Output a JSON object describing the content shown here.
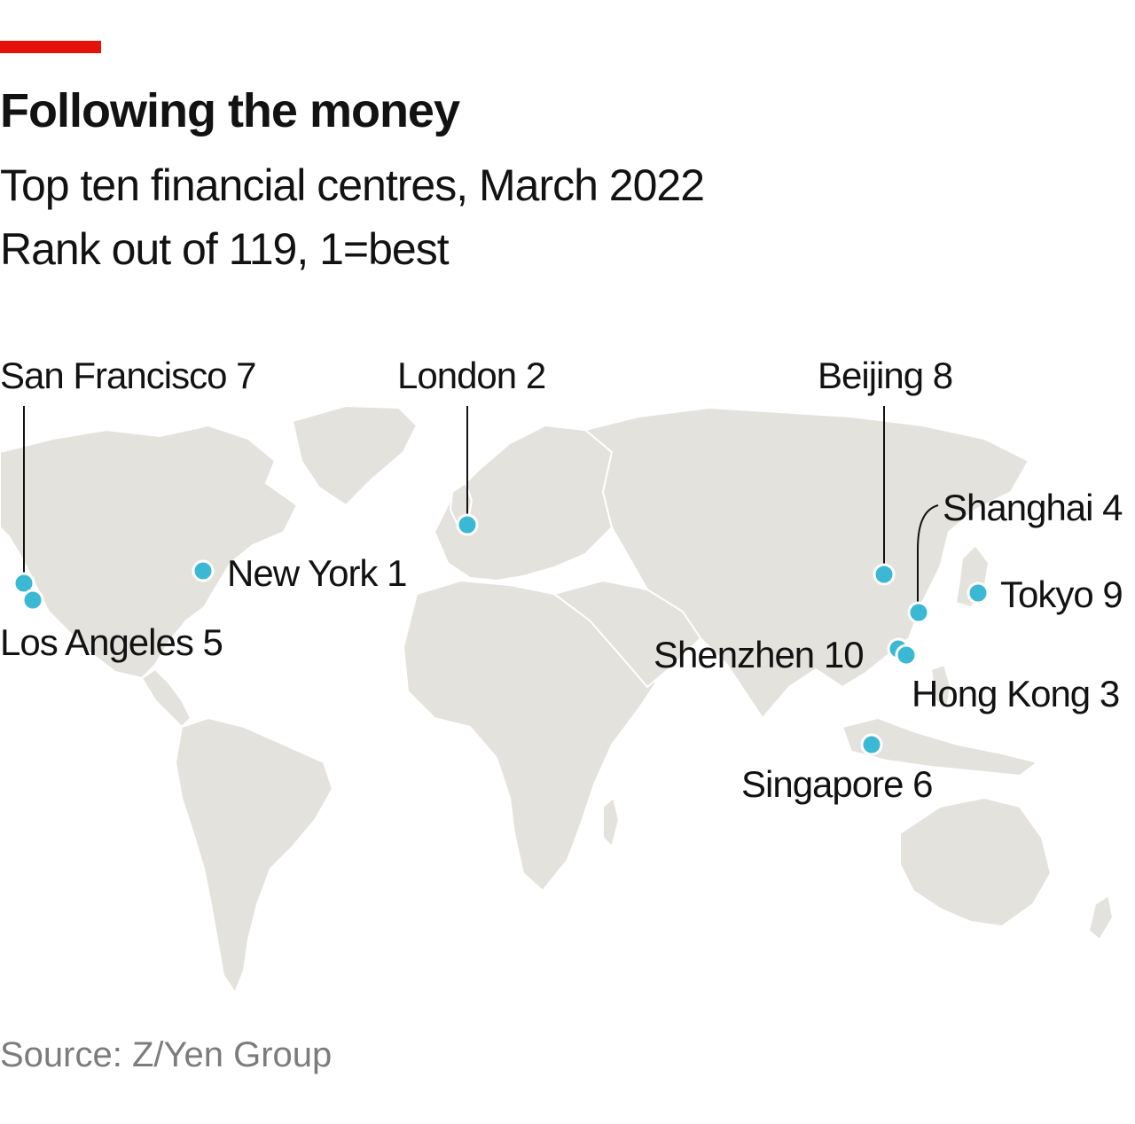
{
  "header": {
    "title": "Following the money",
    "subtitle": "Top ten financial centres, March 2022",
    "note": "Rank out of 119, 1=best"
  },
  "colors": {
    "accent": "#e3120b",
    "marker": "#3bb8d4",
    "land": "#e4e2dc"
  },
  "cities": [
    {
      "name": "New York",
      "rank": 1,
      "label": "New York 1"
    },
    {
      "name": "London",
      "rank": 2,
      "label": "London 2"
    },
    {
      "name": "Hong Kong",
      "rank": 3,
      "label": "Hong Kong 3"
    },
    {
      "name": "Shanghai",
      "rank": 4,
      "label": "Shanghai 4"
    },
    {
      "name": "Los Angeles",
      "rank": 5,
      "label": "Los Angeles 5"
    },
    {
      "name": "Singapore",
      "rank": 6,
      "label": "Singapore 6"
    },
    {
      "name": "San Francisco",
      "rank": 7,
      "label": "San Francisco 7"
    },
    {
      "name": "Beijing",
      "rank": 8,
      "label": "Beijing 8"
    },
    {
      "name": "Tokyo",
      "rank": 9,
      "label": "Tokyo 9"
    },
    {
      "name": "Shenzhen",
      "rank": 10,
      "label": "Shenzhen 10"
    }
  ],
  "footer": {
    "source": "Source: Z/Yen Group"
  }
}
